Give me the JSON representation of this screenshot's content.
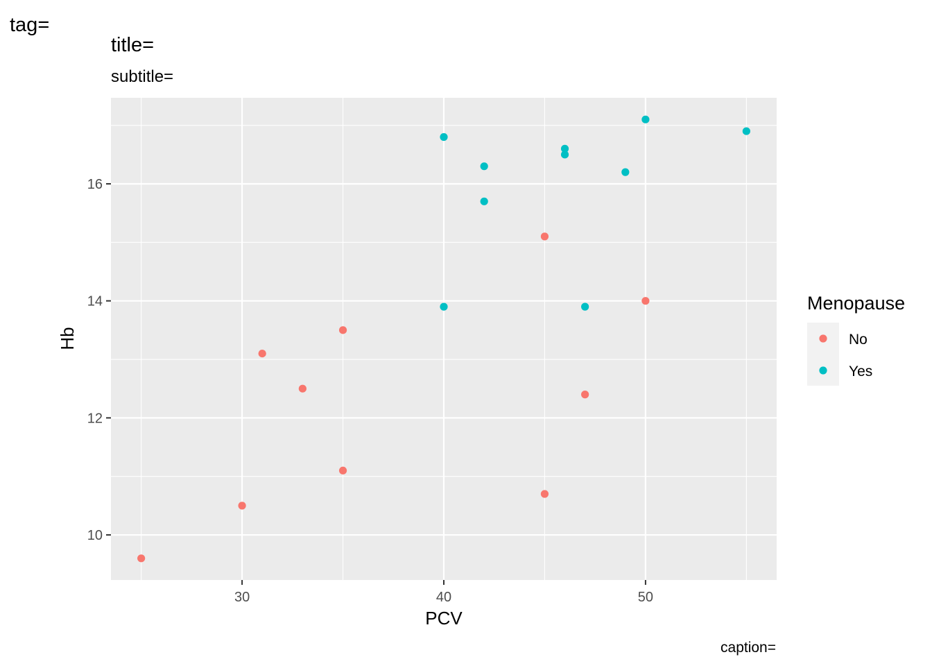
{
  "labels": {
    "tag": "tag=",
    "title": "title=",
    "subtitle": "subtitle=",
    "caption": "caption="
  },
  "chart_data": {
    "type": "scatter",
    "xlabel": "PCV",
    "ylabel": "Hb",
    "xlim": [
      23.5,
      56.5
    ],
    "ylim": [
      9.23,
      17.47
    ],
    "x_ticks": [
      30,
      40,
      50
    ],
    "x_minor": [
      25,
      35,
      45,
      55
    ],
    "y_ticks": [
      10,
      12,
      14,
      16
    ],
    "y_minor": [
      11,
      13,
      15,
      17
    ],
    "grid": true,
    "legend": {
      "title": "Menopause",
      "position": "right"
    },
    "series": [
      {
        "name": "No",
        "color": "#F8766D",
        "points": [
          [
            25,
            9.6
          ],
          [
            30,
            10.5
          ],
          [
            31,
            13.1
          ],
          [
            33,
            12.5
          ],
          [
            35,
            13.5
          ],
          [
            35,
            11.1
          ],
          [
            45,
            15.1
          ],
          [
            45,
            10.7
          ],
          [
            47,
            12.4
          ],
          [
            50,
            14.0
          ]
        ]
      },
      {
        "name": "Yes",
        "color": "#00BFC4",
        "points": [
          [
            40,
            16.8
          ],
          [
            40,
            13.9
          ],
          [
            42,
            16.3
          ],
          [
            42,
            15.7
          ],
          [
            46,
            16.6
          ],
          [
            46,
            16.5
          ],
          [
            47,
            13.9
          ],
          [
            49,
            16.2
          ],
          [
            50,
            17.1
          ],
          [
            55,
            16.9
          ]
        ]
      }
    ]
  }
}
